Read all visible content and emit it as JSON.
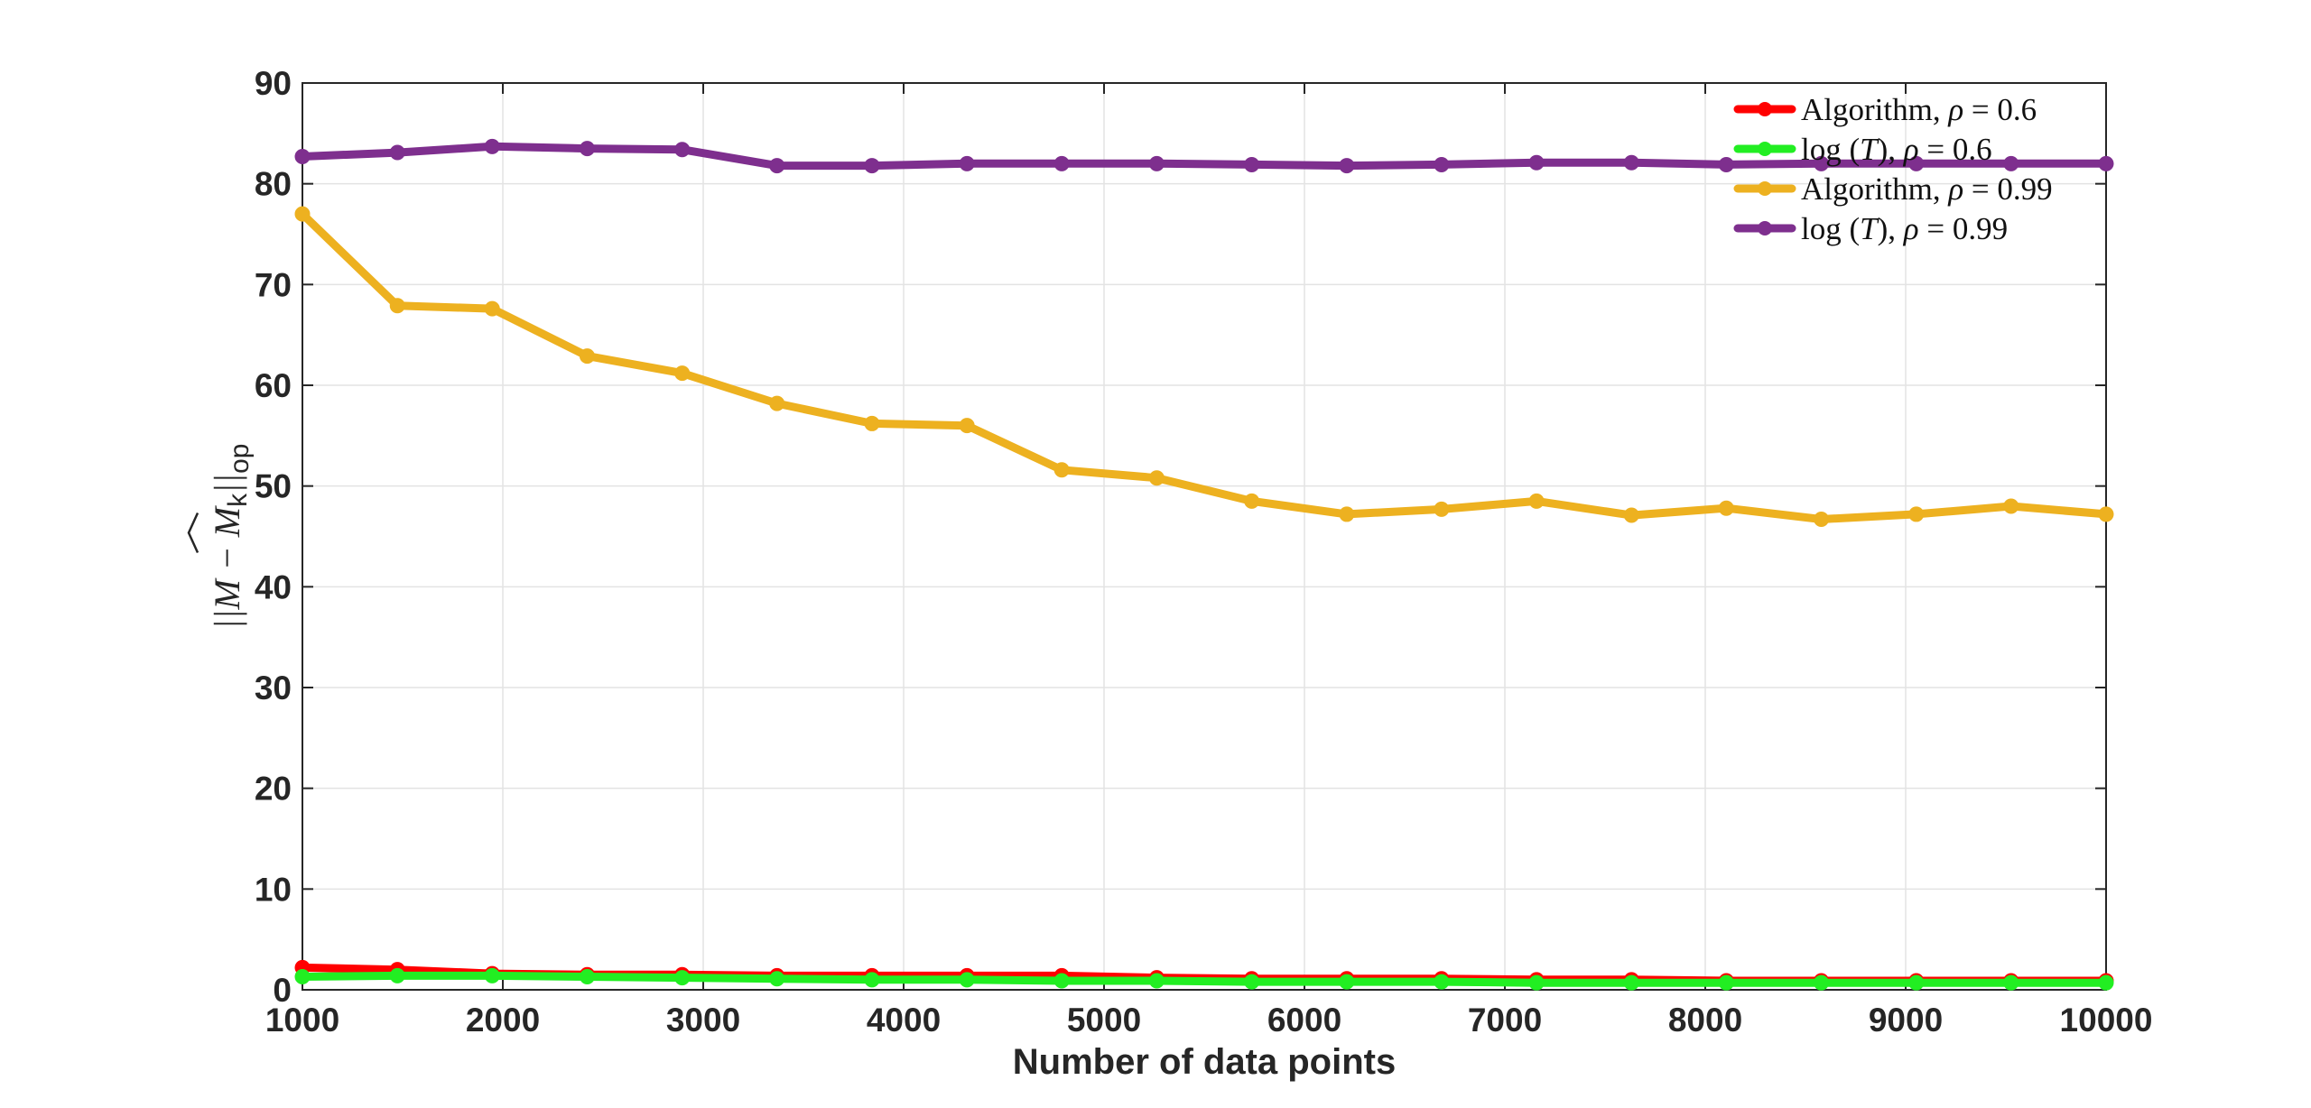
{
  "chart_data": {
    "type": "line",
    "xlabel": "Number of data points",
    "ylabel": "||M − M̂k||op",
    "ylabel_parts": {
      "left": "||M − ",
      "hat": "M",
      "sub": "k",
      "norm": "||",
      "op": "op"
    },
    "xlim": [
      1000,
      10000
    ],
    "ylim": [
      0,
      90
    ],
    "xticks": [
      1000,
      2000,
      3000,
      4000,
      5000,
      6000,
      7000,
      8000,
      9000,
      10000
    ],
    "yticks": [
      0,
      10,
      20,
      30,
      40,
      50,
      60,
      70,
      80,
      90
    ],
    "grid": true,
    "legend_position": "top-right",
    "x": [
      1000,
      1474,
      1947,
      2421,
      2895,
      3368,
      3842,
      4316,
      4789,
      5263,
      5737,
      6211,
      6684,
      7158,
      7632,
      8105,
      8579,
      9053,
      9526,
      10000
    ],
    "series": [
      {
        "name": "Algorithm, ρ = 0.6",
        "color": "#ff0000",
        "values": [
          2.2,
          2.0,
          1.6,
          1.5,
          1.5,
          1.4,
          1.4,
          1.4,
          1.4,
          1.2,
          1.1,
          1.1,
          1.1,
          1.0,
          1.0,
          0.9,
          0.9,
          0.9,
          0.9,
          0.9
        ]
      },
      {
        "name": "log(T), ρ = 0.6",
        "color": "#22ee22",
        "values": [
          1.3,
          1.4,
          1.4,
          1.3,
          1.2,
          1.1,
          1.0,
          1.0,
          0.9,
          0.9,
          0.8,
          0.8,
          0.8,
          0.7,
          0.7,
          0.7,
          0.7,
          0.7,
          0.7,
          0.7
        ]
      },
      {
        "name": "Algorithm, ρ = 0.99",
        "color": "#edb120",
        "values": [
          77.0,
          67.9,
          67.6,
          62.9,
          61.2,
          58.2,
          56.2,
          56.0,
          51.6,
          50.8,
          48.5,
          47.2,
          47.7,
          48.5,
          47.1,
          47.8,
          46.7,
          47.2,
          48.0,
          47.2
        ]
      },
      {
        "name": "log(T), ρ = 0.99",
        "color": "#7e2f8e",
        "values": [
          82.7,
          83.1,
          83.7,
          83.5,
          83.4,
          81.8,
          81.8,
          82.0,
          82.0,
          82.0,
          81.9,
          81.8,
          81.9,
          82.1,
          82.1,
          81.9,
          82.0,
          82.0,
          82.0,
          82.0
        ]
      }
    ],
    "legend": [
      {
        "label": "Algorithm, ",
        "symbol": "ρ",
        "value": " = 0.6",
        "logT": false
      },
      {
        "label": "log",
        "symbol": "ρ",
        "value": " = 0.6",
        "logT": true
      },
      {
        "label": "Algorithm, ",
        "symbol": "ρ",
        "value": " = 0.99",
        "logT": false
      },
      {
        "label": "log",
        "symbol": "ρ",
        "value": " = 0.99",
        "logT": true
      }
    ]
  }
}
